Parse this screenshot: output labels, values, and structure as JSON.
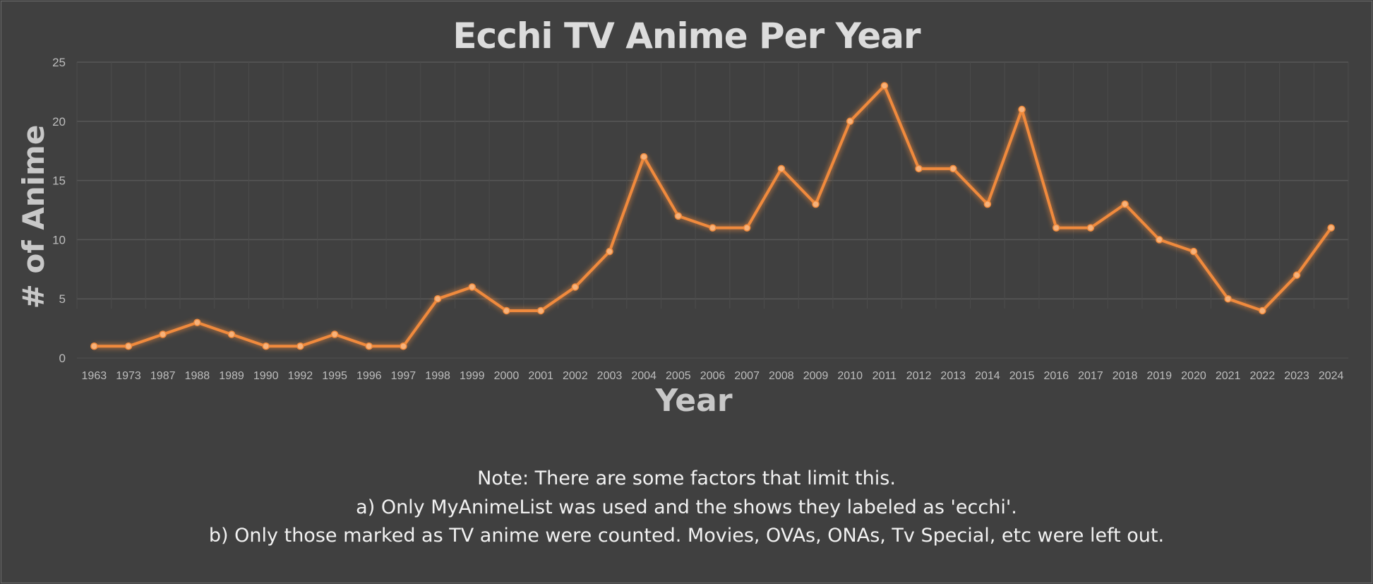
{
  "chart_data": {
    "type": "line",
    "title": "Ecchi TV Anime Per Year",
    "xlabel": "Year",
    "ylabel": "# of Anime",
    "ylim": [
      0,
      25
    ],
    "yticks": [
      0,
      5,
      10,
      15,
      20,
      25
    ],
    "grid": true,
    "categories": [
      "1963",
      "1973",
      "1987",
      "1988",
      "1989",
      "1990",
      "1992",
      "1995",
      "1996",
      "1997",
      "1998",
      "1999",
      "2000",
      "2001",
      "2002",
      "2003",
      "2004",
      "2005",
      "2006",
      "2007",
      "2008",
      "2009",
      "2010",
      "2011",
      "2012",
      "2013",
      "2014",
      "2015",
      "2016",
      "2017",
      "2018",
      "2019",
      "2020",
      "2021",
      "2022",
      "2023",
      "2024"
    ],
    "series": [
      {
        "name": "Ecchi TV Anime",
        "color": "#f08a3c",
        "values": [
          1,
          1,
          2,
          3,
          2,
          1,
          1,
          2,
          1,
          1,
          5,
          6,
          4,
          4,
          6,
          9,
          17,
          12,
          11,
          11,
          16,
          13,
          20,
          23,
          16,
          16,
          13,
          21,
          11,
          11,
          13,
          10,
          9,
          5,
          4,
          7,
          11
        ]
      }
    ]
  },
  "notes": [
    "Note: There are some factors that limit this.",
    "a) Only MyAnimeList was used and the shows they labeled as 'ecchi'.",
    "b) Only those marked as TV anime were counted. Movies, OVAs, ONAs, Tv Special, etc were left out."
  ]
}
